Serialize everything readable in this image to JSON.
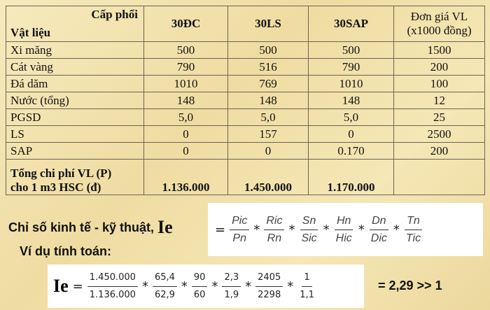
{
  "table": {
    "corner_top": "Cấp phối",
    "corner_bottom": "Vật liệu",
    "headers": [
      "30ĐC",
      "30LS",
      "30SAP"
    ],
    "price_header": [
      "Đơn giá VL",
      "(x1000 đồng)"
    ],
    "rows": [
      [
        "Xi măng",
        "500",
        "500",
        "500",
        "1500"
      ],
      [
        "Cát vàng",
        "790",
        "516",
        "790",
        "200"
      ],
      [
        "Đá dăm",
        "1010",
        "769",
        "1010",
        "100"
      ],
      [
        "Nước (tổng)",
        "148",
        "148",
        "148",
        "12"
      ],
      [
        "PGSD",
        "5,0",
        "5,0",
        "5,0",
        "25"
      ],
      [
        "LS",
        "0",
        "157",
        "0",
        "2500"
      ],
      [
        "SAP",
        "0",
        "0",
        "0.170",
        "200"
      ]
    ],
    "total": {
      "label": [
        "Tổng chi phí VL (P)",
        "cho 1 m3 HSC (đ)"
      ],
      "values": [
        "1.136.000",
        "1.450.000",
        "1.170.000"
      ]
    }
  },
  "index_formula": {
    "label": "Chỉ số kinh tế - kỹ thuật,",
    "symbol": "Ie",
    "equals": "=",
    "times": "*",
    "terms": [
      [
        "Pic",
        "Pn"
      ],
      [
        "Ric",
        "Rn"
      ],
      [
        "Sn",
        "Sic"
      ],
      [
        "Hn",
        "Hic"
      ],
      [
        "Dn",
        "Dic"
      ],
      [
        "Tn",
        "Tic"
      ]
    ]
  },
  "example": {
    "label": "Ví dụ tính toán:",
    "symbol": "Ie",
    "equals": "=",
    "times": "*",
    "terms": [
      [
        "1.450.000",
        "1.136.000"
      ],
      [
        "65,4",
        "62,9"
      ],
      [
        "90",
        "60"
      ],
      [
        "2,3",
        "1,9"
      ],
      [
        "2405",
        "2298"
      ],
      [
        "1",
        "1,1"
      ]
    ],
    "result": "= 2,29 >> 1"
  }
}
